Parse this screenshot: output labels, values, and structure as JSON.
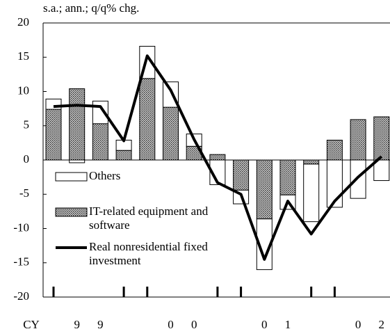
{
  "chart_data": {
    "type": "bar",
    "title": "s.a.; ann.; q/q% chg.",
    "xlabel": "CY",
    "categories": [
      null,
      "9",
      "9",
      null,
      null,
      "0",
      "0",
      null,
      null,
      "0",
      "1",
      null,
      null,
      "0",
      "2"
    ],
    "series": [
      {
        "name": "IT-related equipment and software",
        "color": "#999999",
        "pattern": "dotted",
        "values": [
          7.4,
          10.4,
          5.3,
          1.4,
          11.9,
          7.7,
          2.0,
          0.8,
          -4.4,
          -8.6,
          -5.1,
          -0.6,
          2.9,
          5.9,
          6.3
        ]
      },
      {
        "name": "Others",
        "color": "#ffffff",
        "values": [
          1.5,
          -0.4,
          3.3,
          1.5,
          4.7,
          3.7,
          1.8,
          -3.6,
          -2.0,
          -7.4,
          -2.1,
          -8.4,
          -6.9,
          -5.6,
          -3.0
        ]
      },
      {
        "name": "Real nonresidential fixed investment",
        "type": "line",
        "color": "#000000",
        "values": [
          7.8,
          8.0,
          7.8,
          2.8,
          15.2,
          10.2,
          3.0,
          -3.3,
          -5.0,
          -14.5,
          -6.0,
          -10.8,
          -6.0,
          -2.5,
          0.5
        ]
      }
    ],
    "ylim": [
      -20,
      20
    ],
    "yticks": [
      -20,
      -15,
      -10,
      -5,
      0,
      5,
      10,
      15,
      20
    ],
    "legend": "lower left"
  }
}
